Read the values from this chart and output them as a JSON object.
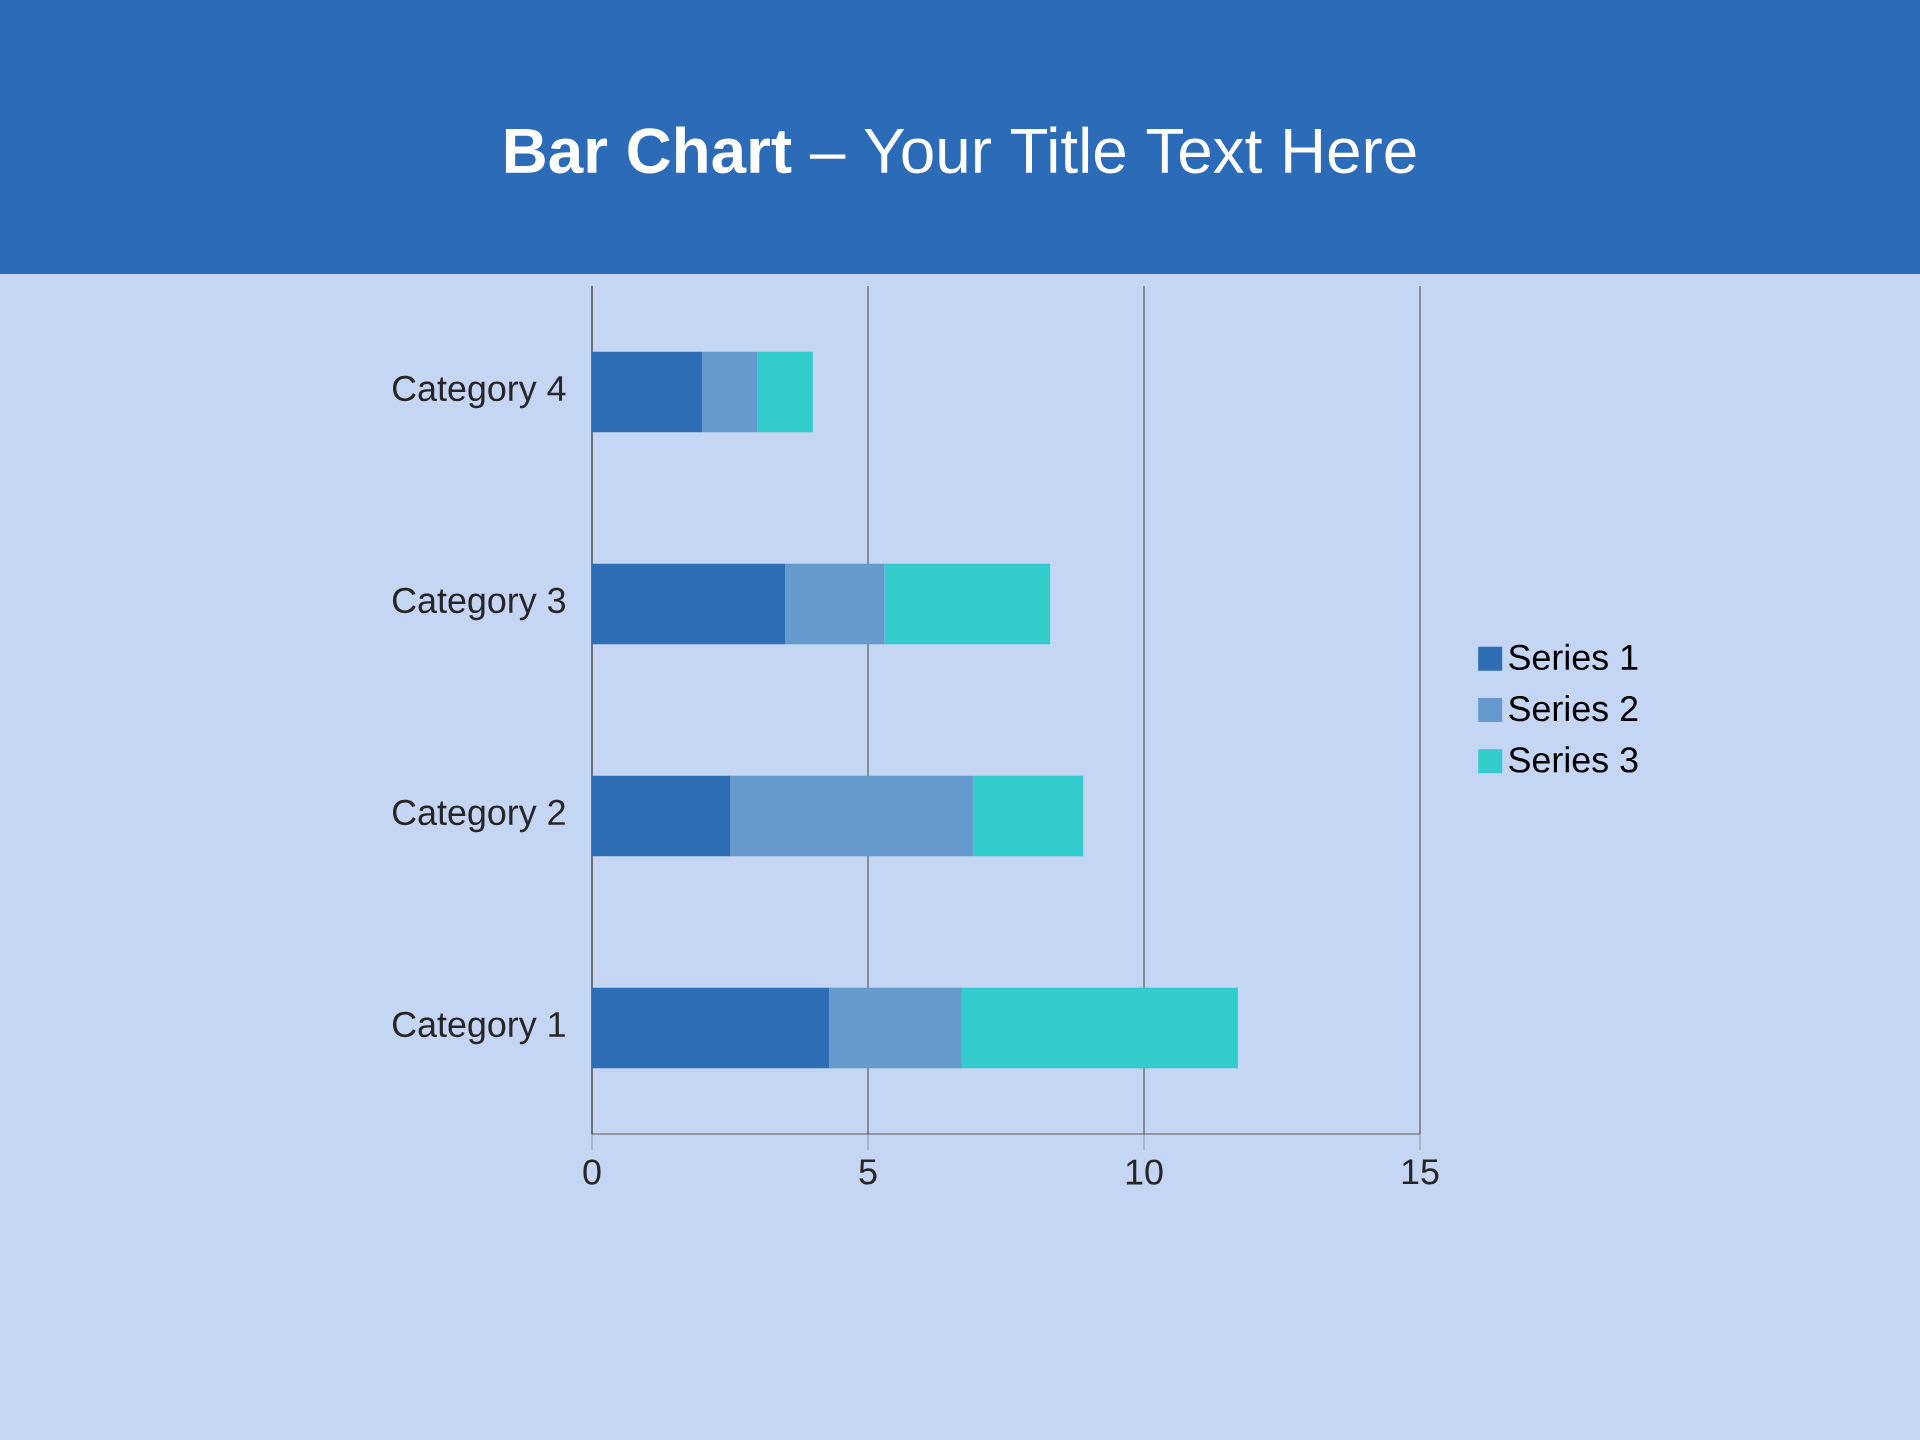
{
  "chart_data": {
    "type": "bar",
    "orientation": "horizontal",
    "stacked": true,
    "title": "**Bar Chart** – Your Title Text Here",
    "categories": [
      "Category 4",
      "Category 3",
      "Category 2",
      "Category 1"
    ],
    "series": [
      {
        "name": "Series 1",
        "color": "#2e6eb5",
        "values": [
          2.0,
          3.5,
          2.5,
          4.3
        ]
      },
      {
        "name": "Series 2",
        "color": "#6699cc",
        "values": [
          1.0,
          1.8,
          4.4,
          2.4
        ]
      },
      {
        "name": "Series 3",
        "color": "#33cccc",
        "values": [
          1.0,
          3.0,
          2.0,
          5.0
        ]
      }
    ],
    "xlim": [
      0,
      15
    ],
    "xticks": [
      0,
      5,
      10,
      15
    ],
    "grid": "x",
    "legend": "right"
  }
}
